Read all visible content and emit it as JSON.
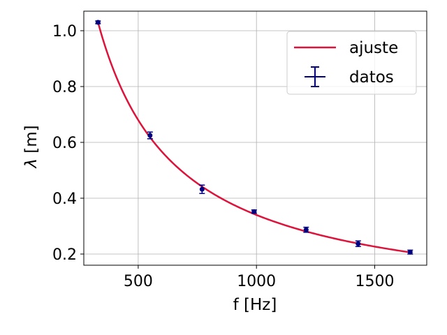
{
  "chart_data": {
    "type": "scatter",
    "xlabel": "f [Hz]",
    "ylabel_symbol": "λ",
    "ylabel_unit": " [m]",
    "xlim": [
      270,
      1720
    ],
    "ylim": [
      0.16,
      1.07
    ],
    "xticks": [
      500,
      1000,
      1500
    ],
    "yticks": [
      0.2,
      0.4,
      0.6,
      0.8,
      1.0
    ],
    "ytick_labels": [
      "0.2",
      "0.4",
      "0.6",
      "0.8",
      "1.0"
    ],
    "grid": true,
    "legend_position": "top-right",
    "series": [
      {
        "name": "ajuste",
        "kind": "line",
        "color": "#dc143c",
        "x_range": [
          330,
          1650
        ],
        "model": "lambda = 340 / f"
      },
      {
        "name": "datos",
        "kind": "errorbar",
        "color": "#000080",
        "x": [
          330,
          550,
          770,
          990,
          1210,
          1430,
          1650
        ],
        "y": [
          1.03,
          0.625,
          0.432,
          0.352,
          0.287,
          0.237,
          0.207
        ],
        "yerr": [
          0.005,
          0.012,
          0.015,
          0.006,
          0.009,
          0.01,
          0.007
        ],
        "xerr": [
          2,
          2,
          2,
          2,
          2,
          2,
          2
        ]
      }
    ]
  }
}
